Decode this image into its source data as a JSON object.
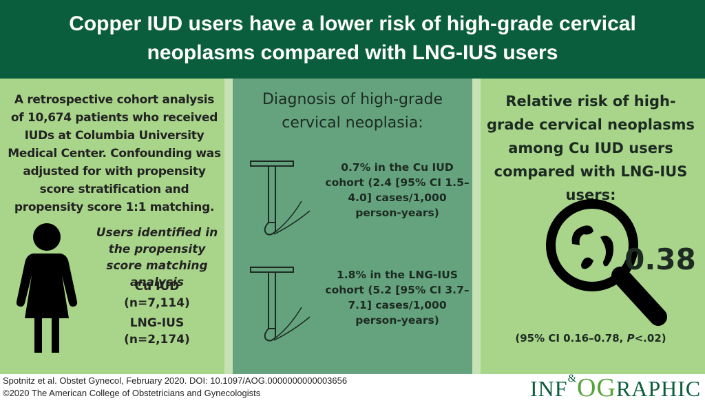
{
  "header": {
    "title_line1": "Copper IUD users have a lower risk of high-grade cervical",
    "title_line2": "neoplasms compared with LNG-IUS users"
  },
  "left": {
    "intro": "A retrospective cohort analysis of 10,674 patients who received IUDs at Columbia University Medical Center. Confounding was adjusted for with propensity score stratification and propensity score 1:1 matching.",
    "users_heading": "Users identified in the propensity score matching analysis",
    "cu_label": "Cu IUD",
    "cu_count": "(n=7,114)",
    "lng_label": "LNG-IUS",
    "lng_count": "(n=2,174)",
    "icon": "person-icon"
  },
  "middle": {
    "heading": "Diagnosis of high-grade cervical neoplasia:",
    "cu_result": "0.7% in the Cu IUD cohort (2.4 [95% CI 1.5–4.0] cases/1,000 person-years)",
    "lng_result": "1.8% in the LNG-IUS cohort (5.2 [95% CI 3.7–7.1] cases/1,000 person-years)",
    "icon": "iud-icon"
  },
  "right": {
    "heading": "Relative risk of high-grade cervical neoplasms among Cu IUD users compared with LNG-IUS users:",
    "value": "0.38",
    "ci_prefix": "(95% CI 0.16–0.78, ",
    "ci_p": "P",
    "ci_suffix": "<.02)",
    "icon": "magnifier-bacteria-icon"
  },
  "footer": {
    "citation": "Spotnitz et al. Obstet Gynecol, February 2020. DOI: 10.1097/AOG.0000000000003656",
    "copyright": "©2020 The American College of Obstetricians and Gynecologists"
  },
  "logo": {
    "part1": "INF",
    "amp": "&",
    "og": "OG",
    "part2": "RAPHIC"
  },
  "colors": {
    "header": "#0b5e3d",
    "panel_light": "#a9d58a",
    "panel_mid": "#65a37e",
    "logo_accent": "#55a33a"
  }
}
